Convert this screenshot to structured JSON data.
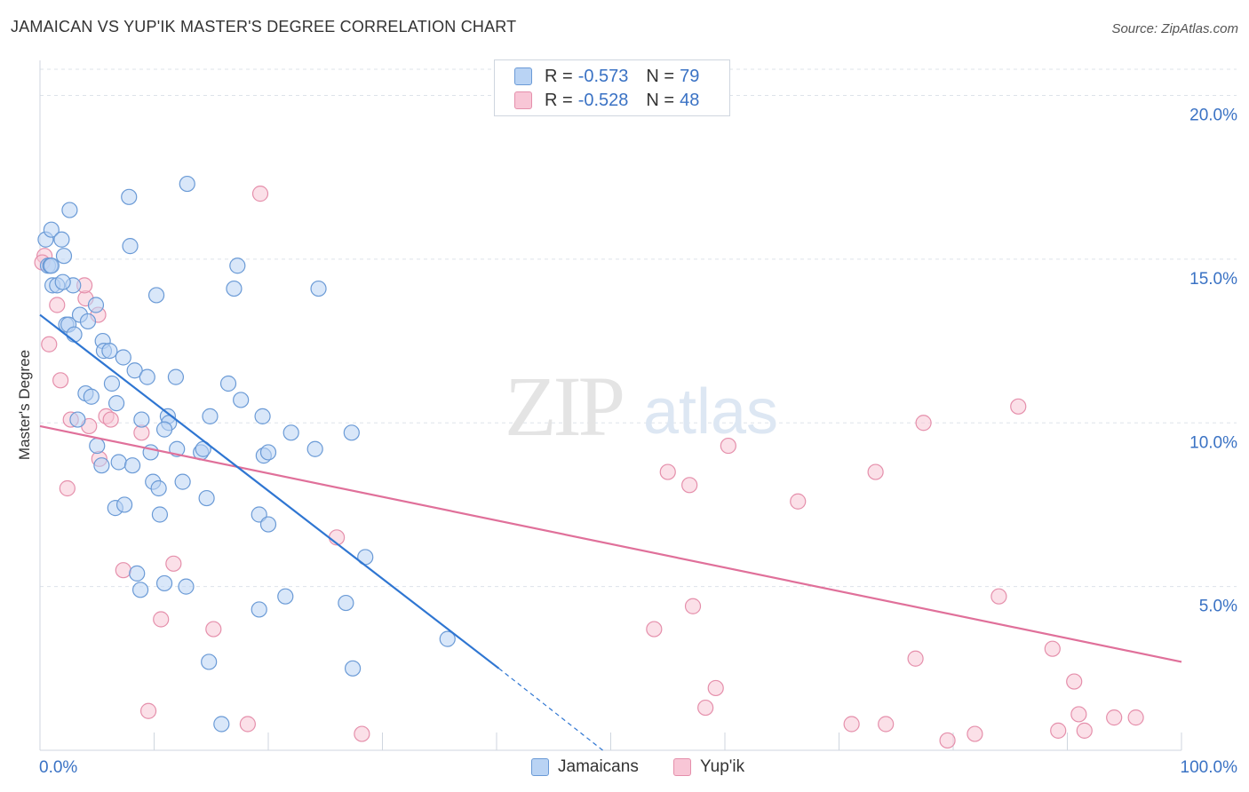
{
  "header": {
    "title": "JAMAICAN VS YUP'IK MASTER'S DEGREE CORRELATION CHART",
    "source": "Source: ZipAtlas.com"
  },
  "watermark": {
    "zip": "ZIP",
    "atlas": "atlas"
  },
  "legend": {
    "rows": [
      {
        "r_label": "R =",
        "r_value": "-0.573",
        "n_label": "N =",
        "n_value": "79"
      },
      {
        "r_label": "R =",
        "r_value": "-0.528",
        "n_label": "N =",
        "n_value": "48"
      }
    ]
  },
  "bottom_legend": {
    "jamaicans": "Jamaicans",
    "yupik": "Yup'ik"
  },
  "colors": {
    "jamaicans_fill": "#b9d3f4",
    "jamaicans_stroke": "#6a9ad6",
    "jamaicans_line": "#2f76d2",
    "yupik_fill": "#f8c6d6",
    "yupik_stroke": "#e58fab",
    "yupik_line": "#e0709a",
    "axis_text": "#3a72c4",
    "grid": "#dde3ea"
  },
  "chart_data": {
    "type": "scatter",
    "title": "JAMAICAN VS YUP'IK MASTER'S DEGREE CORRELATION CHART",
    "xlabel": "",
    "ylabel": "Master's Degree",
    "xlim": [
      0,
      100
    ],
    "ylim": [
      0,
      20.8
    ],
    "x_tick_labels": [
      "0.0%",
      "100.0%"
    ],
    "y_ticks": [
      5,
      10,
      15,
      20
    ],
    "y_tick_labels": [
      "5.0%",
      "10.0%",
      "15.0%",
      "20.0%"
    ],
    "grid": true,
    "legend_position": "top-center",
    "series": [
      {
        "name": "Jamaicans",
        "r": -0.573,
        "n": 79,
        "trend": {
          "x1": 0,
          "y1": 13.3,
          "x2": 40.2,
          "y2": 2.5,
          "dash_to_x": 49.3,
          "dash_to_y": 0
        },
        "points": [
          [
            0.5,
            15.6
          ],
          [
            1.0,
            15.9
          ],
          [
            1.9,
            15.6
          ],
          [
            2.1,
            15.1
          ],
          [
            2.6,
            16.5
          ],
          [
            0.7,
            14.8
          ],
          [
            0.9,
            14.8
          ],
          [
            1.1,
            14.2
          ],
          [
            1.5,
            14.2
          ],
          [
            2.9,
            14.2
          ],
          [
            3.5,
            13.3
          ],
          [
            2.3,
            13.0
          ],
          [
            2.5,
            13.0
          ],
          [
            3.0,
            12.7
          ],
          [
            4.2,
            13.1
          ],
          [
            4.9,
            13.6
          ],
          [
            5.5,
            12.5
          ],
          [
            5.6,
            12.2
          ],
          [
            6.1,
            12.2
          ],
          [
            7.3,
            12.0
          ],
          [
            8.3,
            11.6
          ],
          [
            9.4,
            11.4
          ],
          [
            4.0,
            10.9
          ],
          [
            4.5,
            10.8
          ],
          [
            6.3,
            11.2
          ],
          [
            6.7,
            10.6
          ],
          [
            3.3,
            10.1
          ],
          [
            8.9,
            10.1
          ],
          [
            11.2,
            10.2
          ],
          [
            11.3,
            10.0
          ],
          [
            5.0,
            9.3
          ],
          [
            10.9,
            9.8
          ],
          [
            12.0,
            9.2
          ],
          [
            9.7,
            9.1
          ],
          [
            14.1,
            9.1
          ],
          [
            14.3,
            9.2
          ],
          [
            5.4,
            8.7
          ],
          [
            6.9,
            8.8
          ],
          [
            8.1,
            8.7
          ],
          [
            9.9,
            8.2
          ],
          [
            10.4,
            8.0
          ],
          [
            12.5,
            8.2
          ],
          [
            14.6,
            7.7
          ],
          [
            6.6,
            7.4
          ],
          [
            7.4,
            7.5
          ],
          [
            10.5,
            7.2
          ],
          [
            8.5,
            5.4
          ],
          [
            8.8,
            4.9
          ],
          [
            10.9,
            5.1
          ],
          [
            12.8,
            5.0
          ],
          [
            7.8,
            16.9
          ],
          [
            7.9,
            15.4
          ],
          [
            10.2,
            13.9
          ],
          [
            12.9,
            17.3
          ],
          [
            17.3,
            14.8
          ],
          [
            17.0,
            14.1
          ],
          [
            24.4,
            14.1
          ],
          [
            11.9,
            11.4
          ],
          [
            16.5,
            11.2
          ],
          [
            14.9,
            10.2
          ],
          [
            17.6,
            10.7
          ],
          [
            19.5,
            10.2
          ],
          [
            22.0,
            9.7
          ],
          [
            24.1,
            9.2
          ],
          [
            27.3,
            9.7
          ],
          [
            19.6,
            9.0
          ],
          [
            20.0,
            9.1
          ],
          [
            19.2,
            7.2
          ],
          [
            20.0,
            6.9
          ],
          [
            28.5,
            5.9
          ],
          [
            21.5,
            4.7
          ],
          [
            19.2,
            4.3
          ],
          [
            26.8,
            4.5
          ],
          [
            14.8,
            2.7
          ],
          [
            27.4,
            2.5
          ],
          [
            35.7,
            3.4
          ],
          [
            15.9,
            0.8
          ],
          [
            1.0,
            14.8
          ],
          [
            2.0,
            14.3
          ]
        ]
      },
      {
        "name": "Yup'ik",
        "r": -0.528,
        "n": 48,
        "trend": {
          "x1": 0,
          "y1": 9.9,
          "x2": 100,
          "y2": 2.7
        },
        "points": [
          [
            0.4,
            15.1
          ],
          [
            0.2,
            14.9
          ],
          [
            1.5,
            13.6
          ],
          [
            0.8,
            12.4
          ],
          [
            4.0,
            13.8
          ],
          [
            3.9,
            14.2
          ],
          [
            5.1,
            13.3
          ],
          [
            1.8,
            11.3
          ],
          [
            2.7,
            10.1
          ],
          [
            4.3,
            9.9
          ],
          [
            5.8,
            10.2
          ],
          [
            6.2,
            10.1
          ],
          [
            8.9,
            9.7
          ],
          [
            5.2,
            8.9
          ],
          [
            2.4,
            8.0
          ],
          [
            7.3,
            5.5
          ],
          [
            11.7,
            5.7
          ],
          [
            10.6,
            4.0
          ],
          [
            15.2,
            3.7
          ],
          [
            9.5,
            1.2
          ],
          [
            18.2,
            0.8
          ],
          [
            19.3,
            17.0
          ],
          [
            26.0,
            6.5
          ],
          [
            28.2,
            0.5
          ],
          [
            55.0,
            8.5
          ],
          [
            56.9,
            8.1
          ],
          [
            59.2,
            1.9
          ],
          [
            60.3,
            9.3
          ],
          [
            66.4,
            7.6
          ],
          [
            73.2,
            8.5
          ],
          [
            77.4,
            10.0
          ],
          [
            76.7,
            2.8
          ],
          [
            71.1,
            0.8
          ],
          [
            74.1,
            0.8
          ],
          [
            79.5,
            0.3
          ],
          [
            81.9,
            0.5
          ],
          [
            85.7,
            10.5
          ],
          [
            84.0,
            4.7
          ],
          [
            88.7,
            3.1
          ],
          [
            89.2,
            0.6
          ],
          [
            91.5,
            0.6
          ],
          [
            90.6,
            2.1
          ],
          [
            91.0,
            1.1
          ],
          [
            94.1,
            1.0
          ],
          [
            96.0,
            1.0
          ],
          [
            57.2,
            4.4
          ],
          [
            53.8,
            3.7
          ],
          [
            58.3,
            1.3
          ]
        ]
      }
    ]
  }
}
